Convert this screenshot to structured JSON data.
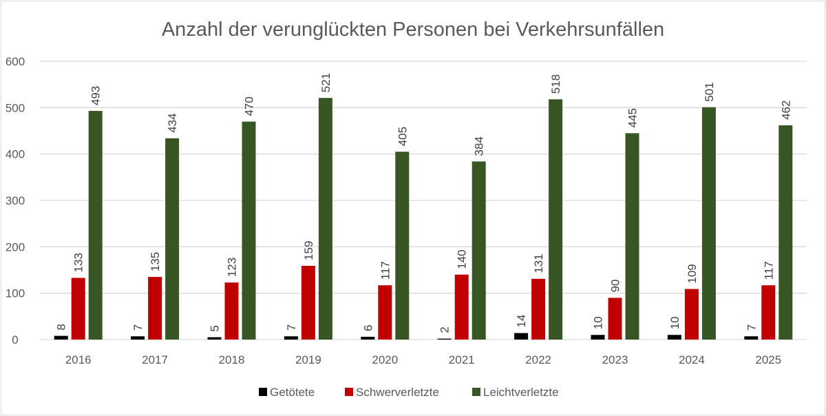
{
  "chart_data": {
    "type": "bar",
    "title": "Anzahl der verunglückten Personen bei Verkehrsunfällen",
    "xlabel": "",
    "ylabel": "",
    "ylim": [
      0,
      600
    ],
    "yticks": [
      0,
      100,
      200,
      300,
      400,
      500,
      600
    ],
    "grid": true,
    "legend_position": "bottom",
    "categories": [
      "2016",
      "2017",
      "2018",
      "2019",
      "2020",
      "2021",
      "2022",
      "2023",
      "2024",
      "2025"
    ],
    "series": [
      {
        "name": "Getötete",
        "color": "#000000",
        "values": [
          8,
          7,
          5,
          7,
          6,
          2,
          14,
          10,
          10,
          7
        ]
      },
      {
        "name": "Schwerverletzte",
        "color": "#c00000",
        "values": [
          133,
          135,
          123,
          159,
          117,
          140,
          131,
          90,
          109,
          117
        ]
      },
      {
        "name": "Leichtverletzte",
        "color": "#375623",
        "values": [
          493,
          434,
          470,
          521,
          405,
          384,
          518,
          445,
          501,
          462
        ]
      }
    ],
    "data_labels": true,
    "data_label_rotation": "vertical"
  }
}
